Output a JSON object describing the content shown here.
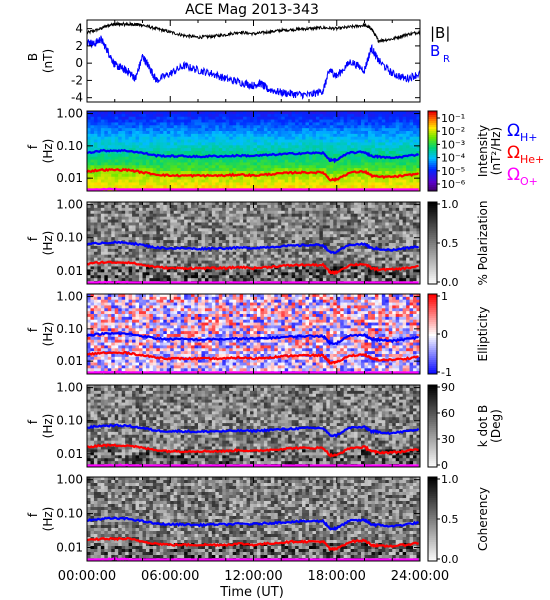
{
  "title": "ACE Mag 2013-343",
  "xlabel": "Time (UT)",
  "x_ticks": [
    "00:00:00",
    "06:00:00",
    "12:00:00",
    "18:00:00",
    "24:00:00"
  ],
  "colors": {
    "h": "#0000ff",
    "he": "#ff0000",
    "o": "#ff00ff",
    "b_total": "#000000",
    "b_r": "#0000ff"
  },
  "chart_data": [
    {
      "type": "line",
      "ylabel": "B",
      "yunit": "(nT)",
      "ylim": [
        -4.5,
        5
      ],
      "y_ticks": [
        "4",
        "2",
        "0",
        "-2",
        "-4"
      ],
      "x_range_hours": [
        0,
        24
      ],
      "legend": [
        "|B|",
        "B"
      ],
      "legend_sub": "R",
      "series": [
        {
          "name": "|B|",
          "x": [
            0,
            1,
            1.5,
            2,
            2.5,
            3,
            3.5,
            4,
            5,
            6,
            7,
            8,
            9,
            10,
            11,
            12,
            13,
            14,
            15,
            16,
            17,
            18,
            19,
            20,
            20.5,
            21,
            22,
            23,
            24
          ],
          "y": [
            3.5,
            4.0,
            4.4,
            4.5,
            4.5,
            4.5,
            4.5,
            4.4,
            4.0,
            3.6,
            3.2,
            3.0,
            3.1,
            3.3,
            3.6,
            3.4,
            3.6,
            3.8,
            3.9,
            4.0,
            4.1,
            4.0,
            4.2,
            4.4,
            4.0,
            2.6,
            2.8,
            3.3,
            3.6
          ]
        },
        {
          "name": "B_R",
          "x": [
            0,
            0.5,
            1,
            1.5,
            2,
            2.5,
            3,
            3.5,
            4,
            4.5,
            5,
            6,
            7,
            8,
            9,
            10,
            11,
            12,
            12.5,
            13,
            14,
            15,
            16,
            17,
            17.5,
            18,
            19,
            20,
            20.5,
            21,
            22,
            23,
            24
          ],
          "y": [
            2.5,
            2.2,
            2.8,
            1.4,
            -0.2,
            -0.6,
            -1.0,
            -1.8,
            0.8,
            -0.5,
            -2.0,
            -1.2,
            -0.3,
            -0.8,
            -1.2,
            -1.8,
            -2.2,
            -2.6,
            -2.3,
            -3.0,
            -3.4,
            -3.6,
            -3.7,
            -3.2,
            -0.8,
            -1.5,
            0.2,
            -0.8,
            1.8,
            0.3,
            -1.2,
            -1.8,
            -1.2
          ]
        }
      ]
    },
    {
      "type": "heatmap",
      "ylabel": "f",
      "yunit": "(Hz)",
      "y_scale": "log",
      "ylim": [
        0.004,
        1.2
      ],
      "y_ticks": [
        "1.00",
        "0.10",
        "0.01"
      ],
      "colorbar": {
        "label": "Intensity",
        "unit": "(nT²/Hz)",
        "ticks": [
          "10⁻¹",
          "10⁻²",
          "10⁻³",
          "10⁻⁴",
          "10⁻⁵",
          "10⁻⁶"
        ],
        "scale": "log",
        "range": [
          1e-07,
          0.2
        ],
        "colormap": "rainbow"
      },
      "gyro_labels": [
        {
          "text": "Ω",
          "sub": "H+",
          "color": "#0000ff"
        },
        {
          "text": "Ω",
          "sub": "He+",
          "color": "#ff0000"
        },
        {
          "text": "Ω",
          "sub": "O+",
          "color": "#ff00ff"
        }
      ]
    },
    {
      "type": "heatmap",
      "ylabel": "f",
      "yunit": "(Hz)",
      "y_scale": "log",
      "ylim": [
        0.004,
        1.2
      ],
      "y_ticks": [
        "1.00",
        "0.10",
        "0.01"
      ],
      "colorbar": {
        "label": "% Polarization",
        "unit": "",
        "ticks": [
          "1.0",
          "0.5",
          "0.0"
        ],
        "scale": "linear",
        "range": [
          0,
          1
        ],
        "colormap": "gray"
      }
    },
    {
      "type": "heatmap",
      "ylabel": "f",
      "yunit": "(Hz)",
      "y_scale": "log",
      "ylim": [
        0.004,
        1.2
      ],
      "y_ticks": [
        "1.00",
        "0.10",
        "0.01"
      ],
      "colorbar": {
        "label": "Ellipticity",
        "unit": "",
        "ticks": [
          "1",
          "0",
          "-1"
        ],
        "scale": "linear",
        "range": [
          -1,
          1
        ],
        "colormap": "bwr"
      }
    },
    {
      "type": "heatmap",
      "ylabel": "f",
      "yunit": "(Hz)",
      "y_scale": "log",
      "ylim": [
        0.004,
        1.2
      ],
      "y_ticks": [
        "1.00",
        "0.10",
        "0.01"
      ],
      "colorbar": {
        "label": "k dot B",
        "unit": "(Deg)",
        "ticks": [
          "90",
          "60",
          "30",
          "0"
        ],
        "scale": "linear",
        "range": [
          0,
          90
        ],
        "colormap": "gray"
      }
    },
    {
      "type": "heatmap",
      "ylabel": "f",
      "yunit": "(Hz)",
      "y_scale": "log",
      "ylim": [
        0.004,
        1.2
      ],
      "y_ticks": [
        "1.00",
        "0.10",
        "0.01"
      ],
      "colorbar": {
        "label": "Coherency",
        "unit": "",
        "ticks": [
          "1.0",
          "0.5",
          "0.0"
        ],
        "scale": "linear",
        "range": [
          0,
          1
        ],
        "colormap": "gray"
      }
    }
  ],
  "gyrofrequency_overlay": {
    "x": [
      0,
      1,
      2,
      3,
      4,
      5,
      6,
      7,
      8,
      9,
      10,
      11,
      12,
      13,
      14,
      15,
      16,
      17,
      17.5,
      18,
      19,
      20,
      20.5,
      21,
      22,
      23,
      24
    ],
    "H+": [
      0.062,
      0.07,
      0.072,
      0.07,
      0.06,
      0.05,
      0.048,
      0.048,
      0.046,
      0.048,
      0.048,
      0.05,
      0.049,
      0.052,
      0.055,
      0.058,
      0.06,
      0.06,
      0.036,
      0.036,
      0.062,
      0.064,
      0.048,
      0.046,
      0.042,
      0.048,
      0.055
    ],
    "He+": [
      0.016,
      0.018,
      0.018,
      0.018,
      0.015,
      0.013,
      0.012,
      0.012,
      0.012,
      0.012,
      0.012,
      0.013,
      0.012,
      0.013,
      0.014,
      0.015,
      0.015,
      0.015,
      0.009,
      0.009,
      0.015,
      0.016,
      0.012,
      0.011,
      0.011,
      0.012,
      0.014
    ],
    "O+": [
      0.004,
      0.0044,
      0.0045,
      0.0044,
      0.0038,
      0.0033,
      0.0031,
      0.0031,
      0.003,
      0.0031,
      0.0031,
      0.0032,
      0.0031,
      0.0033,
      0.0035,
      0.0036,
      0.0038,
      0.0038,
      0.0032,
      0.0032,
      0.0039,
      0.004,
      0.0032,
      0.0031,
      0.0031,
      0.0032,
      0.0035
    ]
  }
}
